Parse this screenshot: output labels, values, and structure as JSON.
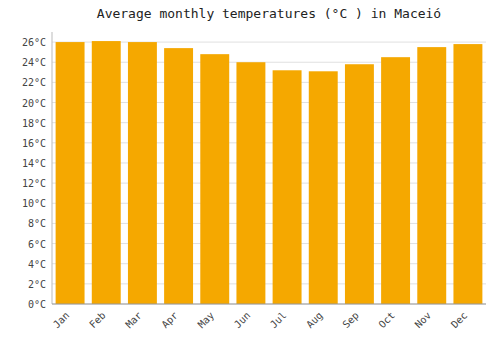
{
  "chart_data": {
    "type": "bar",
    "title": "Average monthly temperatures (°C ) in Maceió",
    "categories": [
      "Jan",
      "Feb",
      "Mar",
      "Apr",
      "May",
      "Jun",
      "Jul",
      "Aug",
      "Sep",
      "Oct",
      "Nov",
      "Dec"
    ],
    "values": [
      26.0,
      26.1,
      26.0,
      25.4,
      24.8,
      24.0,
      23.2,
      23.1,
      23.8,
      24.5,
      25.5,
      25.8
    ],
    "color": "#F5A800",
    "ylim": [
      0,
      27
    ],
    "yticks": [
      {
        "value": 0,
        "label": "0°C"
      },
      {
        "value": 2,
        "label": "2°C"
      },
      {
        "value": 4,
        "label": "4°C"
      },
      {
        "value": 6,
        "label": "6°C"
      },
      {
        "value": 8,
        "label": "8°C"
      },
      {
        "value": 10,
        "label": "10°C"
      },
      {
        "value": 12,
        "label": "12°C"
      },
      {
        "value": 14,
        "label": "14°C"
      },
      {
        "value": 16,
        "label": "16°C"
      },
      {
        "value": 18,
        "label": "18°C"
      },
      {
        "value": 20,
        "label": "20°C"
      },
      {
        "value": 22,
        "label": "22°C"
      },
      {
        "value": 24,
        "label": "24°C"
      },
      {
        "value": 26,
        "label": "26°C"
      }
    ],
    "grid": true
  }
}
